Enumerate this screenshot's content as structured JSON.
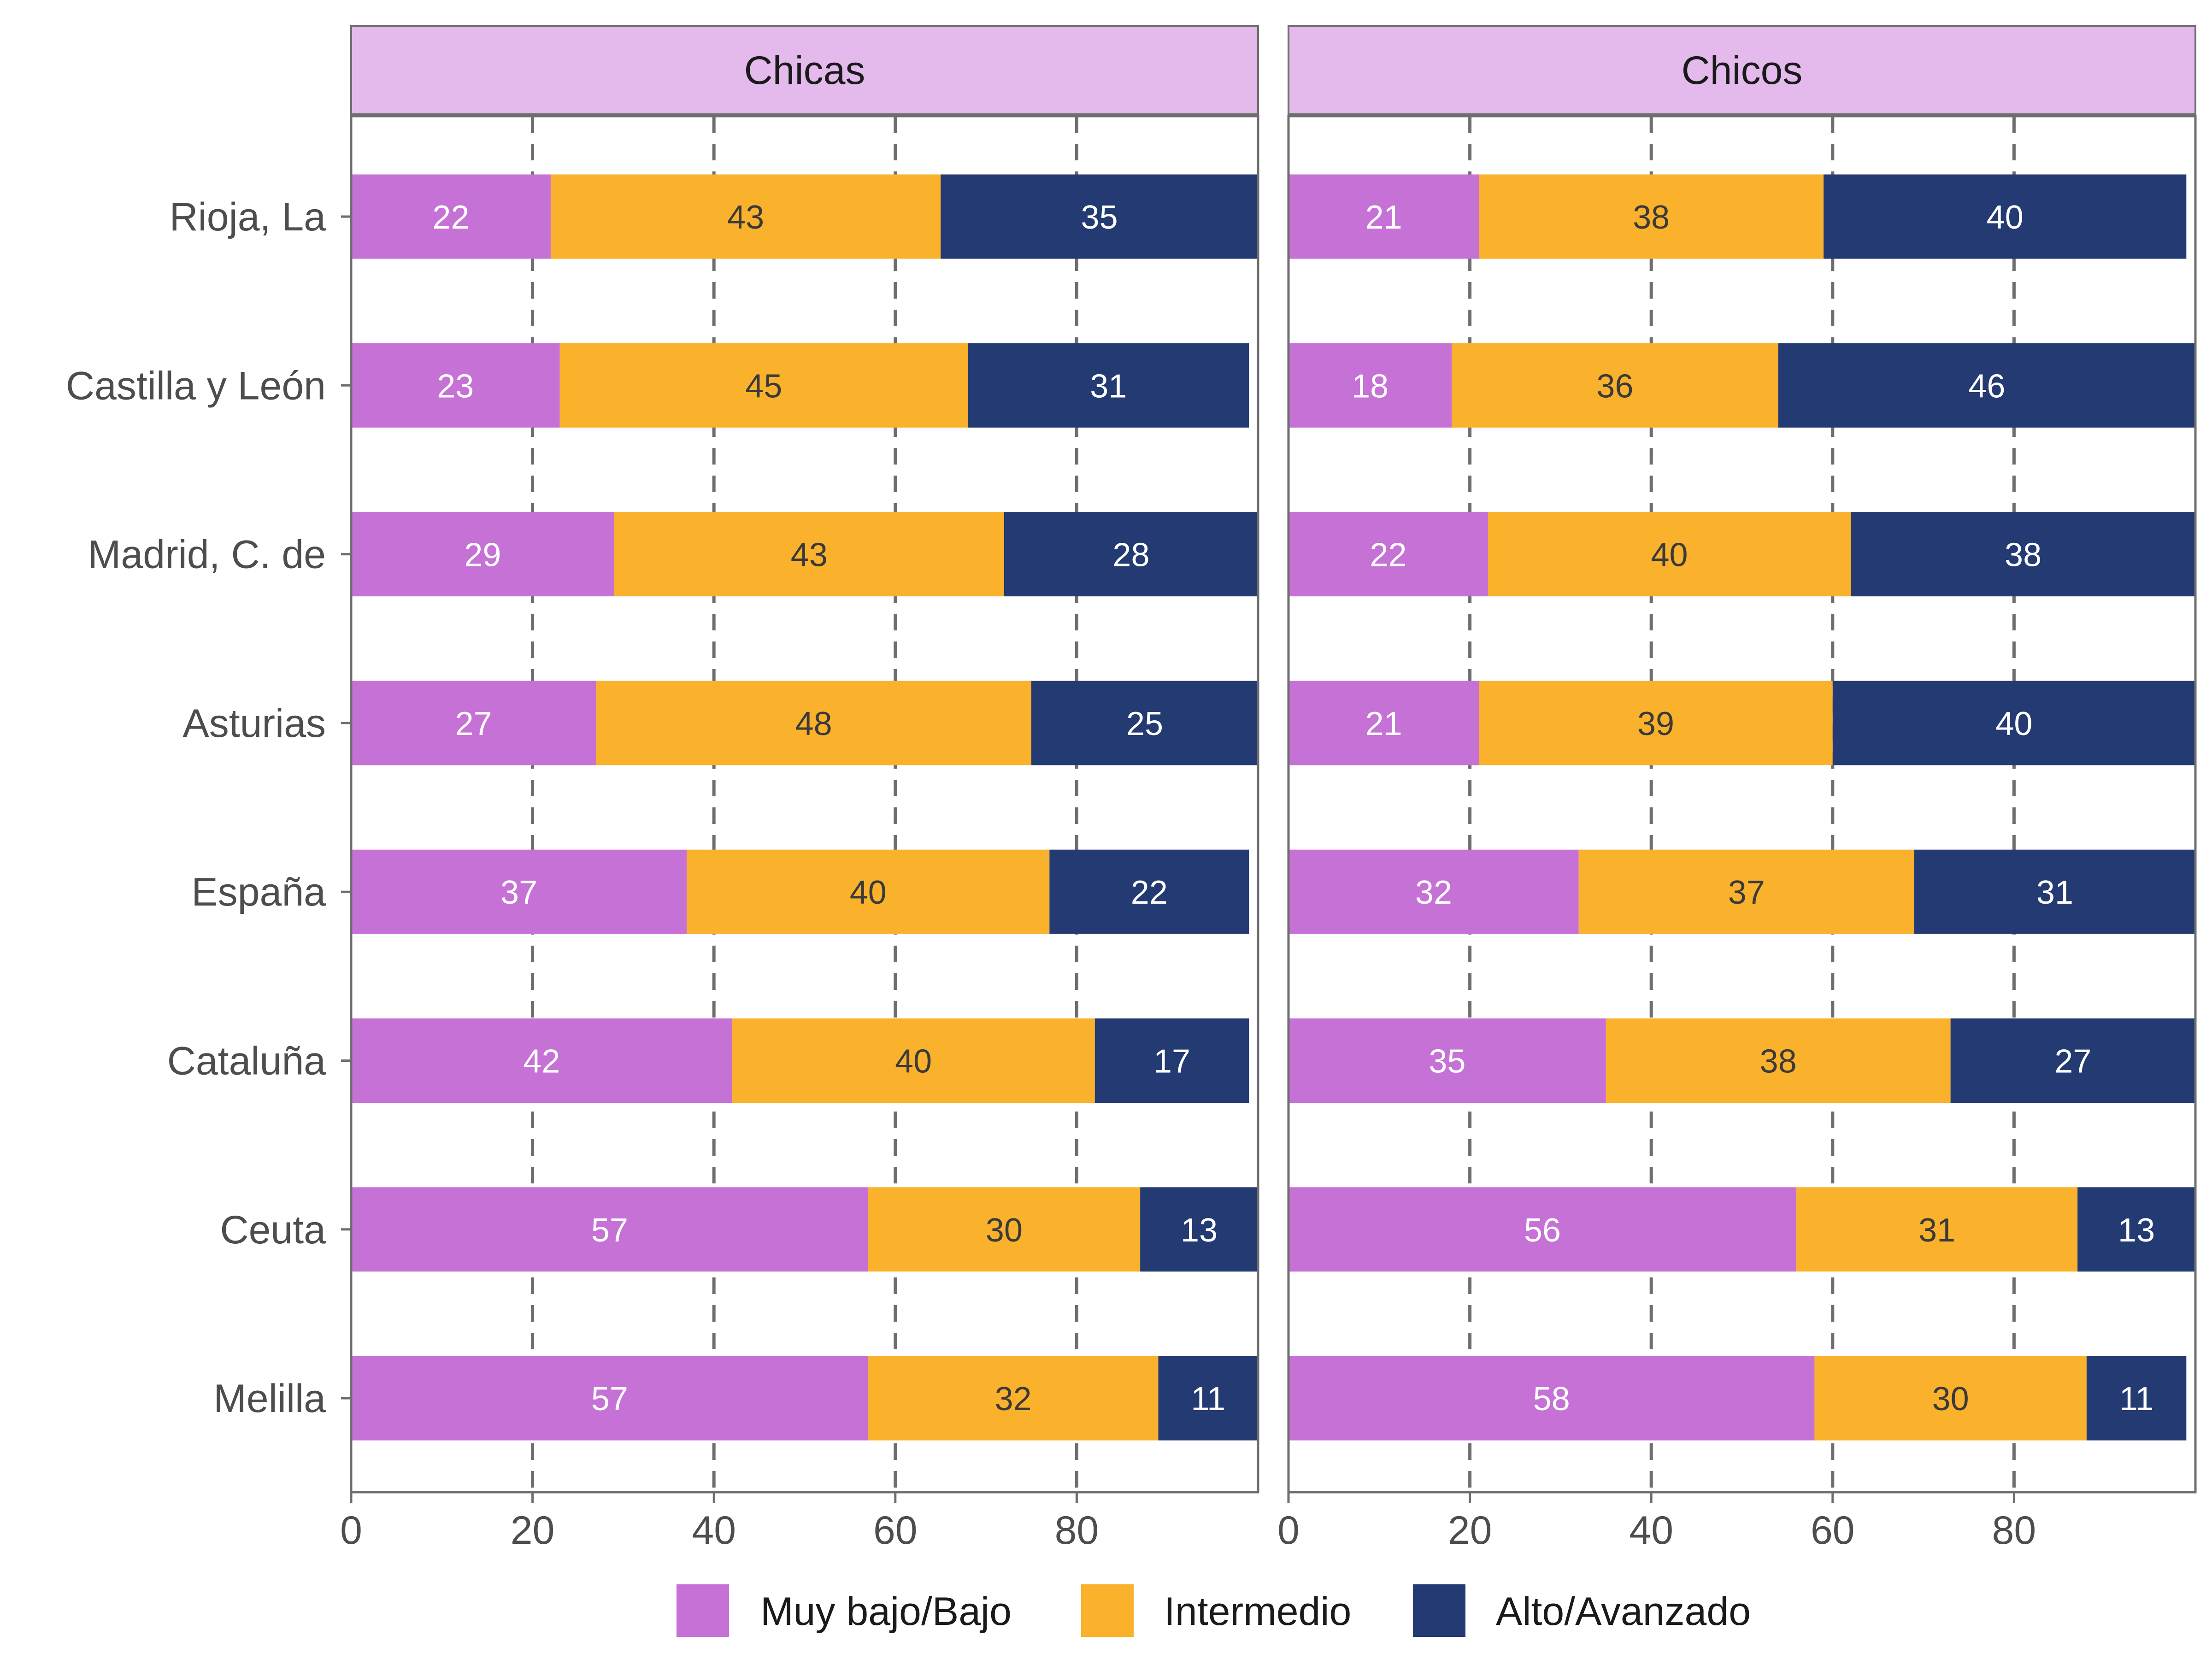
{
  "colors": {
    "strip_fill": "#e4b9ec",
    "gridline": "#6e6e6e",
    "axis": "#6e6e6e",
    "low": "#c671d6",
    "mid": "#fab12c",
    "high": "#233a72",
    "label_on_low": "#ffffff",
    "label_on_mid": "#3a3a3a",
    "label_on_high": "#ffffff"
  },
  "chart_data": {
    "type": "bar",
    "orientation": "horizontal",
    "stacked": true,
    "facets": [
      "Chicas",
      "Chicos"
    ],
    "categories": [
      "Rioja, La",
      "Castilla y León",
      "Madrid, C. de",
      "Asturias",
      "España",
      "Cataluña",
      "Ceuta",
      "Melilla"
    ],
    "series_names": [
      "Muy bajo/Bajo",
      "Intermedio",
      "Alto/Avanzado"
    ],
    "panels": [
      {
        "facet": "Chicas",
        "series": [
          {
            "name": "Muy bajo/Bajo",
            "values": [
              22,
              23,
              29,
              27,
              37,
              42,
              57,
              57
            ]
          },
          {
            "name": "Intermedio",
            "values": [
              43,
              45,
              43,
              48,
              40,
              40,
              30,
              32
            ]
          },
          {
            "name": "Alto/Avanzado",
            "values": [
              35,
              31,
              28,
              25,
              22,
              17,
              13,
              11
            ]
          }
        ]
      },
      {
        "facet": "Chicos",
        "series": [
          {
            "name": "Muy bajo/Bajo",
            "values": [
              21,
              18,
              22,
              21,
              32,
              35,
              56,
              58
            ]
          },
          {
            "name": "Intermedio",
            "values": [
              38,
              36,
              40,
              39,
              37,
              38,
              31,
              30
            ]
          },
          {
            "name": "Alto/Avanzado",
            "values": [
              40,
              46,
              38,
              40,
              31,
              27,
              13,
              11
            ]
          }
        ]
      }
    ],
    "x_ticks": [
      "0",
      "20",
      "40",
      "60",
      "80"
    ],
    "xlim": [
      0,
      100
    ],
    "xlabel": "",
    "ylabel": "",
    "grid": "vertical dashed at 20, 40, 60, 80",
    "legend": "bottom"
  }
}
